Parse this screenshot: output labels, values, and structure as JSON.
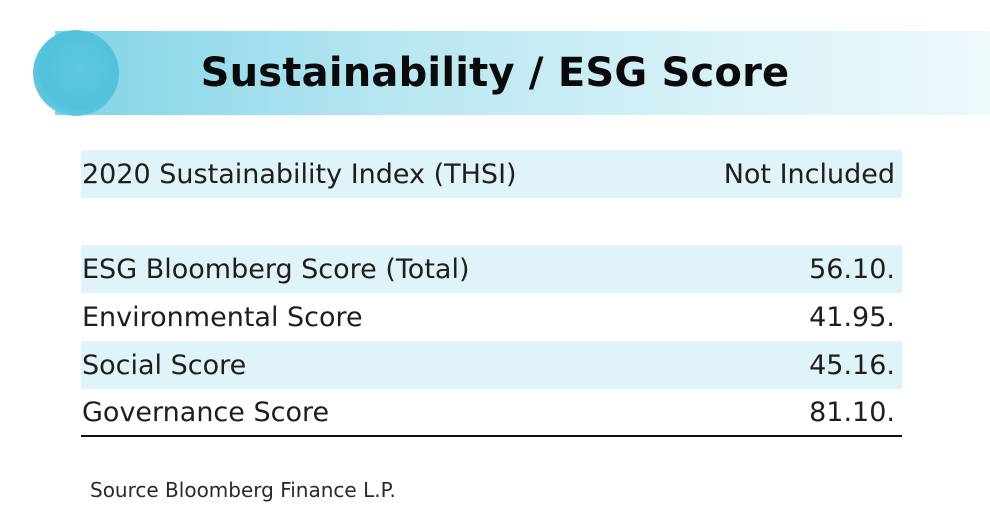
{
  "header": {
    "title": "Sustainability / ESG Score"
  },
  "index_table": {
    "rows": [
      {
        "label": "2020 Sustainability Index (THSI)",
        "value": "Not Included"
      }
    ]
  },
  "score_table": {
    "rows": [
      {
        "label": "ESG Bloomberg Score (Total)",
        "value": "56.10."
      },
      {
        "label": "Environmental Score",
        "value": "41.95."
      },
      {
        "label": "Social Score",
        "value": "45.16."
      },
      {
        "label": "Governance Score",
        "value": "81.10."
      }
    ]
  },
  "footer": {
    "source": "Source Bloomberg Finance L.P."
  },
  "colors": {
    "header_accent": "#52c1db",
    "row_shade": "#dff3f8"
  }
}
